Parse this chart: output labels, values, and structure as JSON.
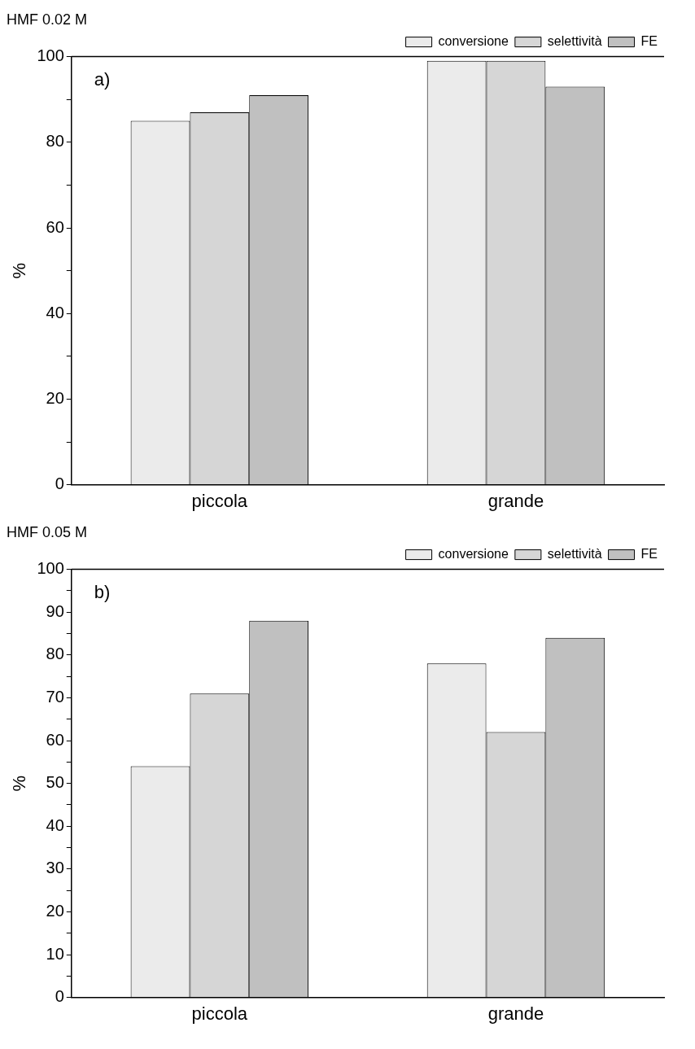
{
  "chart_data": [
    {
      "type": "bar",
      "title": "HMF 0.02 M",
      "ylabel": "%",
      "categories": [
        "piccola",
        "grande"
      ],
      "series": [
        {
          "name": "conversione",
          "color": "#ebebeb",
          "values": [
            85,
            99
          ]
        },
        {
          "name": "selettività",
          "color": "#d6d6d6",
          "values": [
            87,
            99
          ]
        },
        {
          "name": "FE",
          "color": "#c0c0c0",
          "values": [
            91,
            93
          ]
        }
      ],
      "ylim": [
        0,
        100
      ],
      "yticks": [
        0,
        {
          "value": 10,
          "label": null
        },
        20,
        {
          "value": 30,
          "label": null
        },
        40,
        {
          "value": 50,
          "label": null
        },
        60,
        {
          "value": 70,
          "label": null
        },
        80,
        {
          "value": 90,
          "label": null
        },
        100
      ],
      "grid": false,
      "legend": "top right",
      "annotations": [
        "a)"
      ]
    },
    {
      "type": "bar",
      "title": "HMF 0.05 M",
      "ylabel": "%",
      "categories": [
        "piccola",
        "grande"
      ],
      "series": [
        {
          "name": "conversione",
          "color": "#ebebeb",
          "values": [
            54,
            78
          ]
        },
        {
          "name": "selettività",
          "color": "#d6d6d6",
          "values": [
            71,
            62
          ]
        },
        {
          "name": "FE",
          "color": "#c0c0c0",
          "values": [
            88,
            84
          ]
        }
      ],
      "ylim": [
        0,
        100
      ],
      "yticks": [
        0,
        {
          "value": 5,
          "label": null
        },
        10,
        {
          "value": 15,
          "label": null
        },
        20,
        {
          "value": 25,
          "label": null
        },
        30,
        {
          "value": 35,
          "label": null
        },
        40,
        {
          "value": 45,
          "label": null
        },
        50,
        {
          "value": 55,
          "label": null
        },
        60,
        {
          "value": 65,
          "label": null
        },
        70,
        {
          "value": 75,
          "label": null
        },
        80,
        {
          "value": 85,
          "label": null
        },
        90,
        {
          "value": 95,
          "label": null
        },
        100
      ],
      "grid": false,
      "legend": "top right",
      "annotations": [
        "b)"
      ]
    }
  ]
}
